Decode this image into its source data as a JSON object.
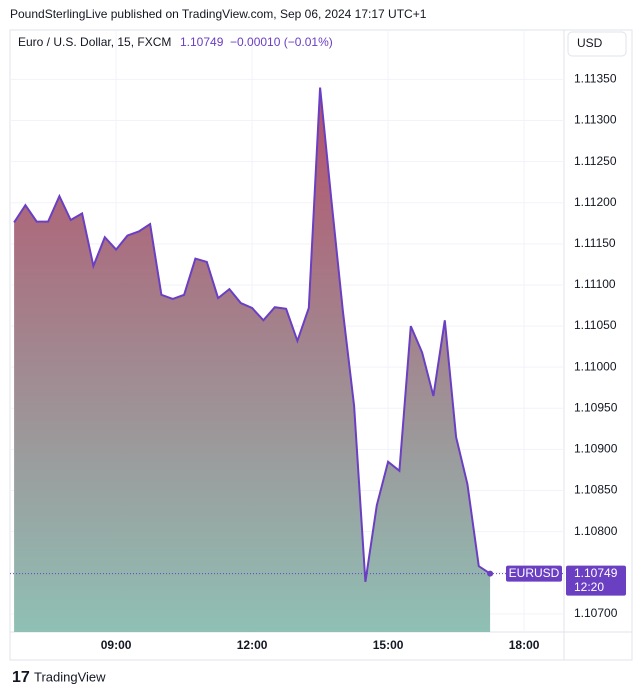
{
  "header": "PoundSterlingLive published on TradingView.com, Sep 06, 2024 17:17 UTC+1",
  "footer": "TradingView",
  "chart_data": {
    "type": "area",
    "title": "Euro / U.S. Dollar, 15, FXCM",
    "last_value_text": "1.10749",
    "change": "−0.00010 (−0.01%)",
    "currency": "USD",
    "symbol": "EURUSD",
    "countdown": "12:20",
    "x": [
      6.75,
      7,
      7.25,
      7.5,
      7.75,
      8,
      8.25,
      8.5,
      8.75,
      9,
      9.25,
      9.5,
      9.75,
      10,
      10.25,
      10.5,
      10.75,
      11,
      11.25,
      11.5,
      11.75,
      12,
      12.25,
      12.5,
      12.75,
      13,
      13.25,
      13.5,
      13.75,
      14,
      14.25,
      14.5,
      14.75,
      15,
      15.25,
      15.5,
      15.75,
      16,
      16.25,
      16.5,
      16.75,
      17,
      17.25
    ],
    "series": [
      {
        "name": "EURUSD",
        "color": "#6a3fc2",
        "area_colors": [
          "#b4506c",
          "#8fc0b4"
        ],
        "values": [
          1.11176,
          1.11197,
          1.11177,
          1.11177,
          1.11208,
          1.11179,
          1.11187,
          1.11123,
          1.11158,
          1.11143,
          1.1116,
          1.11165,
          1.11174,
          1.11088,
          1.11083,
          1.11088,
          1.11132,
          1.11128,
          1.11084,
          1.11095,
          1.11078,
          1.11072,
          1.11057,
          1.11073,
          1.11071,
          1.11032,
          1.11072,
          1.1134,
          1.11203,
          1.11069,
          1.10953,
          1.10739,
          1.10832,
          1.10885,
          1.10874,
          1.1105,
          1.11018,
          1.10965,
          1.11057,
          1.10915,
          1.10858,
          1.10758,
          1.10749
        ]
      }
    ],
    "xlim": [
      6.66,
      18.88
    ],
    "xticks": [
      {
        "value": 9,
        "label": "09:00"
      },
      {
        "value": 12,
        "label": "12:00"
      },
      {
        "value": 15,
        "label": "15:00"
      },
      {
        "value": 18,
        "label": "18:00"
      }
    ],
    "ylim": [
      1.10678,
      1.1141
    ],
    "yticks": [
      {
        "value": 1.107,
        "label": "1.10700"
      },
      {
        "value": 1.1075,
        "label": "1.10750"
      },
      {
        "value": 1.108,
        "label": "1.10800"
      },
      {
        "value": 1.1085,
        "label": "1.10850"
      },
      {
        "value": 1.109,
        "label": "1.10900"
      },
      {
        "value": 1.1095,
        "label": "1.10950"
      },
      {
        "value": 1.11,
        "label": "1.11000"
      },
      {
        "value": 1.1105,
        "label": "1.11050"
      },
      {
        "value": 1.111,
        "label": "1.11100"
      },
      {
        "value": 1.1115,
        "label": "1.11150"
      },
      {
        "value": 1.112,
        "label": "1.11200"
      },
      {
        "value": 1.1125,
        "label": "1.11250"
      },
      {
        "value": 1.113,
        "label": "1.11300"
      },
      {
        "value": 1.1135,
        "label": "1.11350"
      }
    ],
    "grid": true
  }
}
